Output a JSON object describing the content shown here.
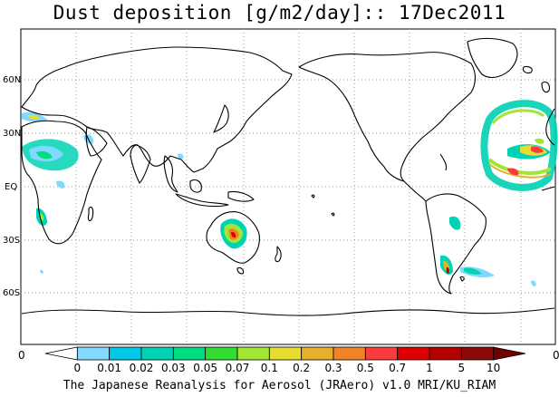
{
  "title": "Dust deposition [g/m2/day]:: 17Dec2011",
  "credit": "The Japanese Reanalysis for Aerosol (JRAero) v1.0 MRI/KU_RIAM",
  "lat_labels": [
    "60N",
    "30N",
    "EQ",
    "30S",
    "60S"
  ],
  "colorbar": {
    "end_label_left": "0",
    "end_label_right": "0",
    "levels": [
      "0",
      "0.01",
      "0.02",
      "0.03",
      "0.05",
      "0.07",
      "0.1",
      "0.2",
      "0.3",
      "0.5",
      "0.7",
      "1",
      "5",
      "10"
    ],
    "colors": [
      "#ffffff",
      "#82d9ff",
      "#00c8e6",
      "#00d2b4",
      "#00dc82",
      "#32dc32",
      "#a0e632",
      "#e6dc32",
      "#e6af2d",
      "#f08228",
      "#fa3c3c",
      "#dc0000",
      "#b40000",
      "#8c0a0a",
      "#6e0000"
    ]
  },
  "legend_colors": {
    "land_outline": "#000000",
    "grid": "#9a9a9a"
  }
}
